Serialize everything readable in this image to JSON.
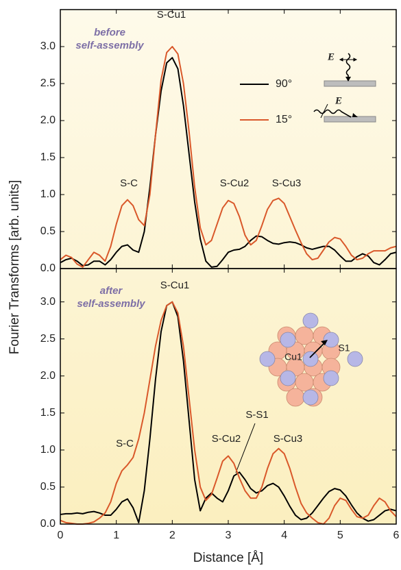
{
  "chart_data": [
    {
      "type": "line",
      "ylabel": "Fourier Transforms  [arb. units]",
      "panel_label": [
        "before",
        "self-assembly"
      ],
      "annotations": [
        "S-Cu1",
        "S-C",
        "S-Cu2",
        "S-Cu3"
      ],
      "legend_symbol": "E",
      "x": [
        0,
        0.1,
        0.2,
        0.3,
        0.4,
        0.5,
        0.6,
        0.7,
        0.8,
        0.9,
        1.0,
        1.1,
        1.2,
        1.3,
        1.4,
        1.5,
        1.6,
        1.7,
        1.8,
        1.9,
        2.0,
        2.1,
        2.2,
        2.3,
        2.4,
        2.5,
        2.6,
        2.7,
        2.8,
        2.9,
        3.0,
        3.1,
        3.2,
        3.3,
        3.4,
        3.5,
        3.6,
        3.7,
        3.8,
        3.9,
        4.0,
        4.1,
        4.2,
        4.3,
        4.4,
        4.5,
        4.6,
        4.7,
        4.8,
        4.9,
        5.0,
        5.1,
        5.2,
        5.3,
        5.4,
        5.5,
        5.6,
        5.7,
        5.8,
        5.9,
        6.0
      ],
      "series": [
        {
          "name": "90°",
          "color": "#000000",
          "values": [
            0.08,
            0.12,
            0.14,
            0.1,
            0.04,
            0.05,
            0.1,
            0.1,
            0.05,
            0.12,
            0.22,
            0.3,
            0.32,
            0.25,
            0.22,
            0.5,
            1.1,
            1.8,
            2.4,
            2.78,
            2.85,
            2.7,
            2.2,
            1.55,
            0.9,
            0.4,
            0.1,
            0.02,
            0.03,
            0.12,
            0.22,
            0.25,
            0.26,
            0.3,
            0.38,
            0.44,
            0.43,
            0.38,
            0.34,
            0.33,
            0.35,
            0.36,
            0.35,
            0.32,
            0.28,
            0.26,
            0.28,
            0.3,
            0.3,
            0.25,
            0.17,
            0.1,
            0.1,
            0.16,
            0.2,
            0.17,
            0.08,
            0.05,
            0.12,
            0.2,
            0.22
          ]
        },
        {
          "name": "15°",
          "color": "#d9582a",
          "values": [
            0.12,
            0.18,
            0.15,
            0.06,
            0.02,
            0.12,
            0.22,
            0.18,
            0.1,
            0.3,
            0.6,
            0.85,
            0.93,
            0.85,
            0.66,
            0.58,
            1.0,
            1.8,
            2.55,
            2.92,
            3.0,
            2.9,
            2.5,
            1.85,
            1.1,
            0.55,
            0.32,
            0.38,
            0.6,
            0.82,
            0.92,
            0.88,
            0.7,
            0.45,
            0.32,
            0.38,
            0.58,
            0.8,
            0.92,
            0.95,
            0.88,
            0.7,
            0.52,
            0.35,
            0.2,
            0.12,
            0.14,
            0.25,
            0.36,
            0.42,
            0.4,
            0.3,
            0.18,
            0.12,
            0.14,
            0.2,
            0.24,
            0.24,
            0.24,
            0.28,
            0.3
          ]
        }
      ],
      "xlim": [
        0,
        6
      ],
      "xticks": [
        0,
        1,
        2,
        3,
        4,
        5,
        6
      ],
      "ylim": [
        0,
        3.5
      ],
      "yticks": [
        {
          "value": 0,
          "label": "0.0"
        },
        {
          "value": 0.5,
          "label": "0.5"
        },
        {
          "value": 1,
          "label": "1.0"
        },
        {
          "value": 1.5,
          "label": "1.5"
        },
        {
          "value": 2,
          "label": "2.0"
        },
        {
          "value": 2.5,
          "label": "2.5"
        },
        {
          "value": 3,
          "label": "3.0"
        }
      ]
    },
    {
      "type": "line",
      "xlabel": "Distance  [Å]",
      "panel_label": [
        "after",
        "self-assembly"
      ],
      "annotations": [
        "S-Cu1",
        "S-C",
        "S-Cu2",
        "S-S1",
        "S-Cu3"
      ],
      "inset_labels": [
        "Cu1",
        "S1"
      ],
      "x": [
        0,
        0.1,
        0.2,
        0.3,
        0.4,
        0.5,
        0.6,
        0.7,
        0.8,
        0.9,
        1.0,
        1.1,
        1.2,
        1.3,
        1.4,
        1.5,
        1.6,
        1.7,
        1.8,
        1.9,
        2.0,
        2.1,
        2.2,
        2.3,
        2.4,
        2.5,
        2.6,
        2.7,
        2.8,
        2.9,
        3.0,
        3.1,
        3.2,
        3.3,
        3.4,
        3.5,
        3.6,
        3.7,
        3.8,
        3.9,
        4.0,
        4.1,
        4.2,
        4.3,
        4.4,
        4.5,
        4.6,
        4.7,
        4.8,
        4.9,
        5.0,
        5.1,
        5.2,
        5.3,
        5.4,
        5.5,
        5.6,
        5.7,
        5.8,
        5.9,
        6.0
      ],
      "series": [
        {
          "name": "90°",
          "color": "#000000",
          "values": [
            0.13,
            0.14,
            0.14,
            0.15,
            0.14,
            0.16,
            0.17,
            0.15,
            0.12,
            0.12,
            0.2,
            0.3,
            0.34,
            0.22,
            0.02,
            0.45,
            1.15,
            1.95,
            2.6,
            2.95,
            3.0,
            2.8,
            2.2,
            1.4,
            0.6,
            0.18,
            0.35,
            0.42,
            0.35,
            0.3,
            0.45,
            0.65,
            0.7,
            0.6,
            0.48,
            0.42,
            0.45,
            0.52,
            0.55,
            0.5,
            0.38,
            0.24,
            0.12,
            0.06,
            0.08,
            0.15,
            0.25,
            0.35,
            0.44,
            0.48,
            0.46,
            0.38,
            0.26,
            0.15,
            0.08,
            0.04,
            0.06,
            0.12,
            0.18,
            0.2,
            0.18
          ]
        },
        {
          "name": "15°",
          "color": "#d9582a",
          "values": [
            0.05,
            0.02,
            0.01,
            0.0,
            0.0,
            0.01,
            0.03,
            0.08,
            0.15,
            0.3,
            0.55,
            0.72,
            0.8,
            0.9,
            1.15,
            1.5,
            1.95,
            2.4,
            2.75,
            2.95,
            3.0,
            2.85,
            2.4,
            1.7,
            1.0,
            0.5,
            0.32,
            0.4,
            0.62,
            0.85,
            0.92,
            0.82,
            0.62,
            0.45,
            0.35,
            0.35,
            0.5,
            0.75,
            0.95,
            1.02,
            0.95,
            0.75,
            0.5,
            0.28,
            0.15,
            0.08,
            0.02,
            0.0,
            0.08,
            0.25,
            0.35,
            0.32,
            0.2,
            0.1,
            0.08,
            0.12,
            0.25,
            0.35,
            0.3,
            0.18,
            0.1
          ]
        }
      ],
      "xlim": [
        0,
        6
      ],
      "xticks": [
        0,
        1,
        2,
        3,
        4,
        5,
        6
      ],
      "ylim": [
        0,
        3.45
      ],
      "yticks": [
        {
          "value": 0,
          "label": "0.0"
        },
        {
          "value": 0.5,
          "label": "0.5"
        },
        {
          "value": 1,
          "label": "1.0"
        },
        {
          "value": 1.5,
          "label": "1.5"
        },
        {
          "value": 2,
          "label": "2.0"
        },
        {
          "value": 2.5,
          "label": "2.5"
        },
        {
          "value": 3,
          "label": "3.0"
        }
      ]
    }
  ]
}
